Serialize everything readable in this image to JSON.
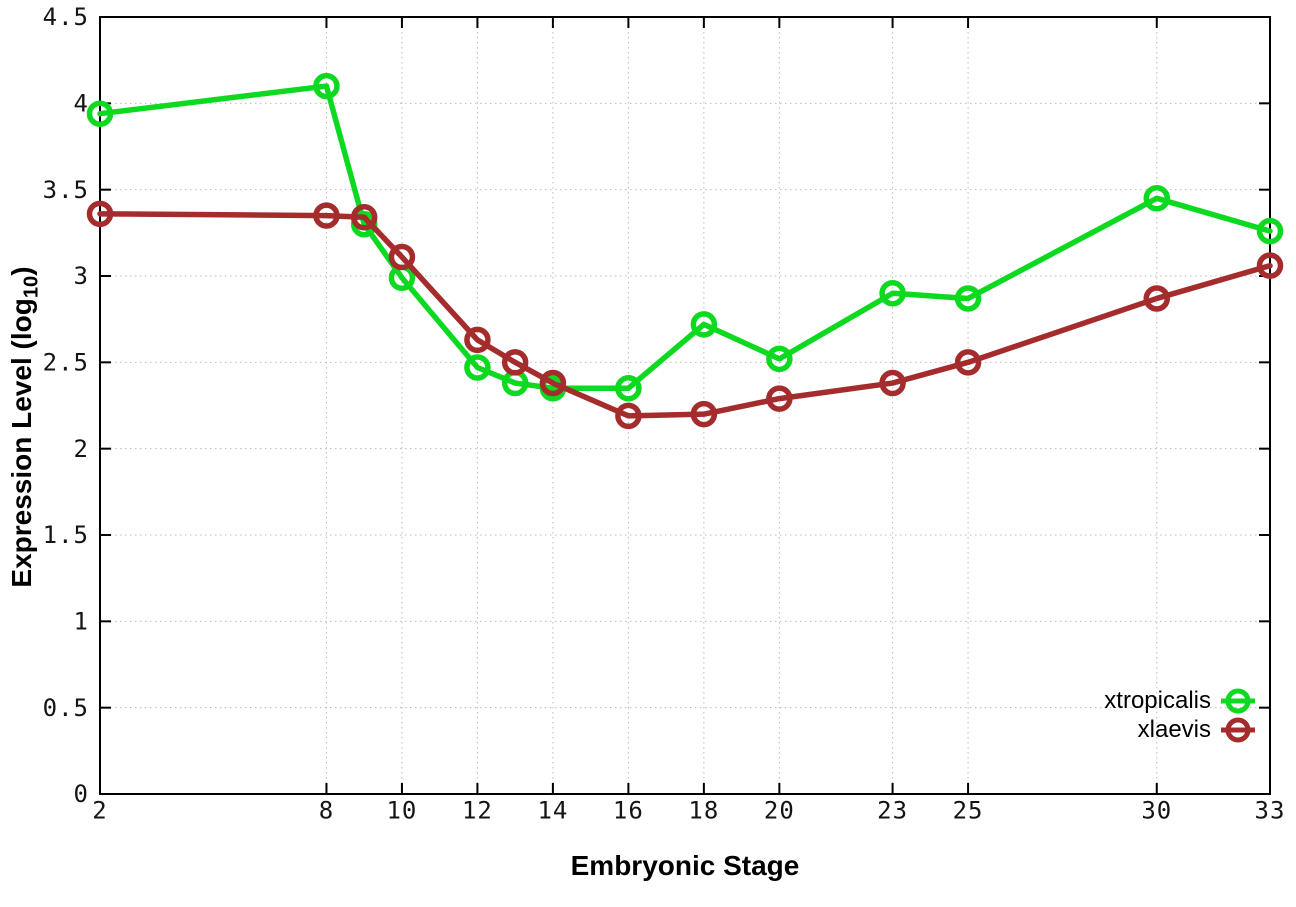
{
  "chart_data": {
    "type": "line",
    "title": "",
    "xlabel": "Embryonic Stage",
    "ylabel": "Expression Level (log10)",
    "ylabel_parts": {
      "prefix": "Expression Level (log",
      "sub": "10",
      "suffix": ")"
    },
    "xlim": [
      2,
      33
    ],
    "ylim": [
      0,
      4.5
    ],
    "grid": true,
    "legend_position": "bottom-right",
    "x": [
      2,
      8,
      9,
      10,
      12,
      13,
      14,
      16,
      18,
      20,
      23,
      25,
      30,
      33
    ],
    "series": [
      {
        "name": "xtropicalis",
        "color": "#0dd921",
        "values": [
          3.94,
          4.1,
          3.3,
          2.99,
          2.47,
          2.38,
          2.35,
          2.35,
          2.72,
          2.52,
          2.9,
          2.87,
          3.45,
          3.26
        ]
      },
      {
        "name": "xlaevis",
        "color": "#a42c2c",
        "values": [
          3.36,
          3.35,
          3.34,
          3.11,
          2.63,
          2.5,
          2.38,
          2.19,
          2.2,
          2.29,
          2.38,
          2.5,
          2.87,
          3.06
        ]
      }
    ],
    "xticks": {
      "values": [
        2,
        8,
        10,
        12,
        14,
        16,
        18,
        20,
        23,
        25,
        30,
        33
      ],
      "labels": [
        "2",
        "8",
        "10",
        "12",
        "14",
        "16",
        "18",
        "20",
        "23",
        "25",
        "30",
        "33"
      ]
    },
    "yticks": {
      "values": [
        0,
        0.5,
        1,
        1.5,
        2,
        2.5,
        3,
        3.5,
        4,
        4.5
      ],
      "labels": [
        "0",
        "0.5",
        "1",
        "1.5",
        "2",
        "2.5",
        "3",
        "3.5",
        "4",
        "4.5"
      ]
    }
  }
}
